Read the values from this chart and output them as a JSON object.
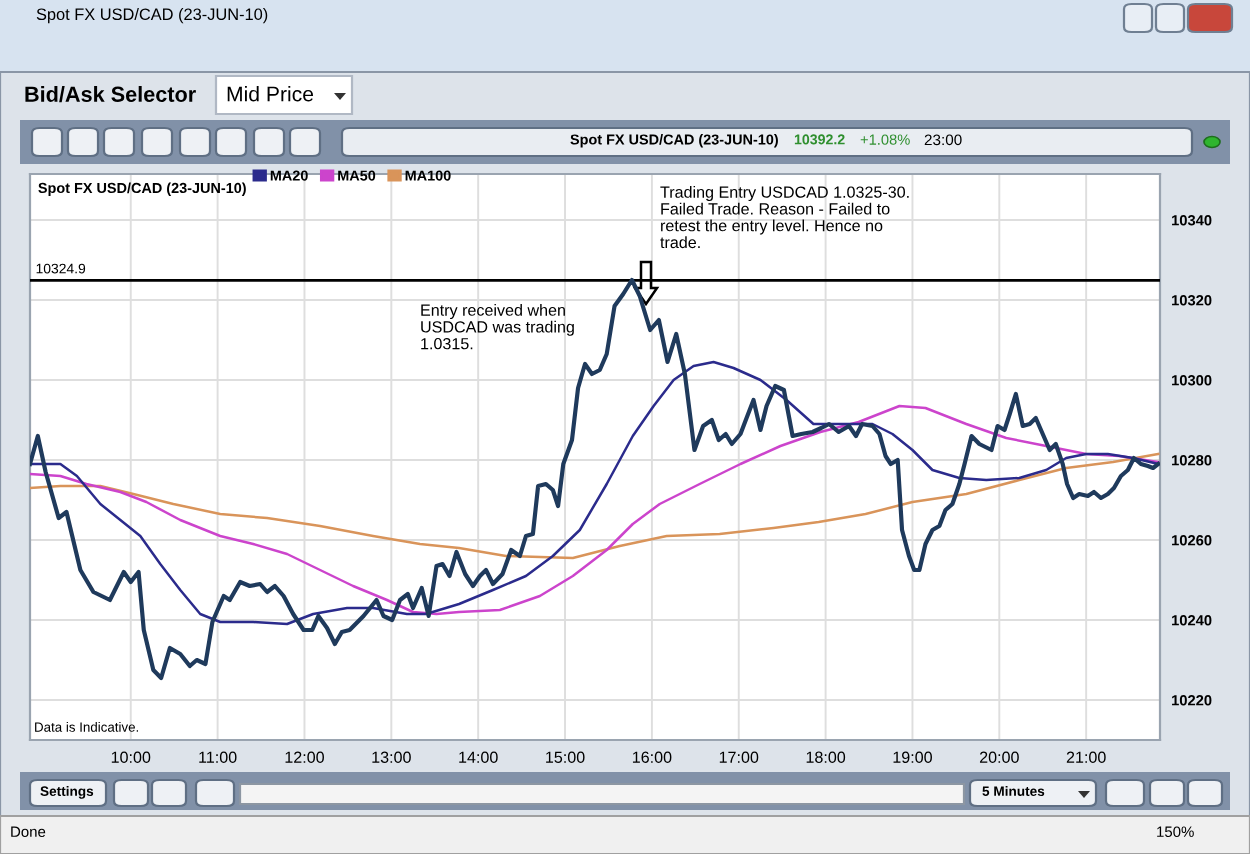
{
  "chart_data": {
    "type": "line",
    "title": "Spot FX USD/CAD (23-JUN-10)",
    "xlim": [
      8.84,
      21.85
    ],
    "xticks": [
      {
        "value": 10,
        "label": "10:00"
      },
      {
        "value": 11,
        "label": "11:00"
      },
      {
        "value": 12,
        "label": "12:00"
      },
      {
        "value": 13,
        "label": "13:00"
      },
      {
        "value": 14,
        "label": "14:00"
      },
      {
        "value": 15,
        "label": "15:00"
      },
      {
        "value": 16,
        "label": "16:00"
      },
      {
        "value": 17,
        "label": "17:00"
      },
      {
        "value": 18,
        "label": "18:00"
      },
      {
        "value": 19,
        "label": "19:00"
      },
      {
        "value": 20,
        "label": "20:00"
      },
      {
        "value": 21,
        "label": "21:00"
      }
    ],
    "ylim": [
      10210,
      10351.5
    ],
    "yticks": [
      10220,
      10240,
      10260,
      10280,
      10300,
      10320,
      10340
    ],
    "grid": true,
    "legend": "top left",
    "ref_lines": [
      {
        "axis": "y",
        "value": 10324.9,
        "label": "10324.9",
        "color": "#000000"
      }
    ],
    "series": [
      {
        "color": "#1f3a5c",
        "x": [
          8.84,
          8.93,
          9.02,
          9.17,
          9.26,
          9.42,
          9.57,
          9.76,
          9.92,
          10.0,
          10.09,
          10.15,
          10.26,
          10.35,
          10.45,
          10.57,
          10.68,
          10.76,
          10.86,
          10.94,
          11.07,
          11.14,
          11.26,
          11.37,
          11.49,
          11.57,
          11.66,
          11.76,
          11.87,
          11.99,
          12.09,
          12.16,
          12.26,
          12.35,
          12.43,
          12.52,
          12.68,
          12.83,
          12.91,
          13.01,
          13.1,
          13.19,
          13.25,
          13.35,
          13.43,
          13.52,
          13.59,
          13.67,
          13.75,
          13.85,
          13.94,
          14.02,
          14.09,
          14.17,
          14.28,
          14.38,
          14.48,
          14.55,
          14.63,
          14.69,
          14.78,
          14.86,
          14.92,
          14.98,
          15.08,
          15.15,
          15.23,
          15.31,
          15.4,
          15.48,
          15.57,
          15.67,
          15.77,
          15.86,
          15.98,
          16.08,
          16.18,
          16.28,
          16.38,
          16.49,
          16.59,
          16.69,
          16.77,
          16.85,
          16.92,
          17.02,
          17.09,
          17.17,
          17.25,
          17.32,
          17.42,
          17.52,
          17.62,
          17.72,
          17.85,
          17.95,
          18.04,
          18.15,
          18.27,
          18.35,
          18.42,
          18.54,
          18.62,
          18.69,
          18.75,
          18.83,
          18.88,
          18.96,
          19.02,
          19.08,
          19.15,
          19.23,
          19.31,
          19.38,
          19.46,
          19.54,
          19.6,
          19.68,
          19.77,
          19.91,
          19.98,
          20.06,
          20.12,
          20.19,
          20.27,
          20.35,
          20.42,
          20.5,
          20.58,
          20.65,
          20.73,
          20.78,
          20.85,
          20.92,
          21.02,
          21.09,
          21.17,
          21.25,
          21.32,
          21.4,
          21.48,
          21.55,
          21.63,
          21.71,
          21.77,
          21.83
        ],
        "values": [
          10279,
          10286,
          10277,
          10265.5,
          10267,
          10252.5,
          10247,
          10245,
          10252,
          10249.5,
          10252,
          10237.5,
          10227.5,
          10225.5,
          10233,
          10231.5,
          10228.5,
          10230,
          10229,
          10239.5,
          10246,
          10245,
          10249.5,
          10248.5,
          10249,
          10247,
          10248.5,
          10246,
          10241.5,
          10237.5,
          10237.5,
          10241,
          10238,
          10234,
          10237,
          10237.5,
          10241,
          10245,
          10241,
          10240,
          10245,
          10246.5,
          10243,
          10248,
          10241,
          10253.5,
          10254,
          10251,
          10257,
          10251.5,
          10248.5,
          10251,
          10252.5,
          10249,
          10251.5,
          10257.5,
          10256,
          10261,
          10261.5,
          10273.5,
          10274,
          10272.5,
          10268.5,
          10279,
          10285,
          10298,
          10304,
          10301.5,
          10302.5,
          10306.5,
          10318.5,
          10321.5,
          10325,
          10321,
          10312.5,
          10315,
          10304.5,
          10311.5,
          10301.5,
          10282.5,
          10288.5,
          10290,
          10285,
          10286.5,
          10284,
          10286.5,
          10290.5,
          10295,
          10287.5,
          10293.5,
          10298.5,
          10297.5,
          10286,
          10286.5,
          10287,
          10288,
          10289,
          10287,
          10288.5,
          10286,
          10289,
          10288.5,
          10286.5,
          10281,
          10279,
          10280,
          10262.5,
          10256,
          10252.5,
          10252.5,
          10259,
          10262.5,
          10263.5,
          10267.5,
          10269,
          10274,
          10279,
          10286,
          10284,
          10282.5,
          10288.5,
          10287.5,
          10291.5,
          10296.5,
          10288.5,
          10289,
          10290.5,
          10286.5,
          10282.5,
          10284,
          10279,
          10274,
          10270.5,
          10271.5,
          10271,
          10272,
          10270.5,
          10271.5,
          10273,
          10276,
          10277.5,
          10280.5,
          10279,
          10278.5,
          10278,
          10279
        ]
      },
      {
        "name": "MA20",
        "color": "#2b2b8c",
        "x": [
          8.84,
          8.96,
          9.19,
          9.38,
          9.65,
          9.88,
          10.11,
          10.34,
          10.57,
          10.8,
          11.03,
          11.41,
          11.8,
          12.1,
          12.49,
          12.79,
          13.18,
          13.4,
          13.78,
          14.17,
          14.55,
          14.86,
          15.17,
          15.48,
          15.78,
          16.02,
          16.25,
          16.48,
          16.71,
          16.94,
          17.25,
          17.55,
          17.86,
          18.23,
          18.54,
          18.77,
          19.0,
          19.23,
          19.54,
          19.85,
          20.23,
          20.54,
          20.77,
          21.0,
          21.25,
          21.54,
          21.83
        ],
        "values": [
          10279,
          10279,
          10279,
          10276,
          10269,
          10265,
          10261,
          10254,
          10247.5,
          10241.5,
          10239.5,
          10239.5,
          10239,
          10241.5,
          10243,
          10243,
          10241.5,
          10241.5,
          10244,
          10247.5,
          10251,
          10256,
          10262.5,
          10274,
          10286,
          10293.5,
          10300,
          10303.5,
          10304.5,
          10303,
          10300,
          10295,
          10289,
          10289,
          10289,
          10286.5,
          10282.5,
          10277.5,
          10275.5,
          10275,
          10275.5,
          10277.5,
          10280.5,
          10281.5,
          10281.5,
          10280.5,
          10279
        ]
      },
      {
        "name": "MA50",
        "color": "#cc44cc",
        "x": [
          8.84,
          9.19,
          9.49,
          9.88,
          10.18,
          10.57,
          11.03,
          11.41,
          11.8,
          12.18,
          12.56,
          12.95,
          13.25,
          13.52,
          13.78,
          14.25,
          14.71,
          15.09,
          15.48,
          15.78,
          16.09,
          16.55,
          17.02,
          17.48,
          17.94,
          18.38,
          18.85,
          19.15,
          19.62,
          20.08,
          20.54,
          21.0,
          21.38,
          21.83
        ],
        "values": [
          10276.5,
          10276,
          10274,
          10272,
          10269.5,
          10265,
          10261,
          10259,
          10256.5,
          10252.5,
          10248.5,
          10245,
          10242,
          10241.5,
          10242,
          10242.5,
          10246,
          10251,
          10257.5,
          10264,
          10269,
          10274,
          10279,
          10283.5,
          10287,
          10289.5,
          10293.5,
          10293,
          10289,
          10285.5,
          10283.5,
          10281.5,
          10281,
          10279.5
        ]
      },
      {
        "name": "MA100",
        "color": "#d9945a",
        "x": [
          8.84,
          9.19,
          9.65,
          10.03,
          10.49,
          11.03,
          11.57,
          12.18,
          12.79,
          13.33,
          13.78,
          14.32,
          15.09,
          15.63,
          16.17,
          16.78,
          17.4,
          17.92,
          18.46,
          19.0,
          19.62,
          20.23,
          20.77,
          21.31,
          21.83
        ],
        "values": [
          10273,
          10273.5,
          10273.5,
          10271.5,
          10269,
          10266.5,
          10265.5,
          10263.5,
          10261,
          10259,
          10258,
          10256,
          10255.5,
          10258.5,
          10261,
          10261.5,
          10263,
          10264.5,
          10266.5,
          10269.5,
          10271.5,
          10275,
          10278,
          10279.5,
          10281.5
        ]
      }
    ],
    "annotations": [
      "Entry received when\nUSDCAD was trading\n1.0315.",
      "Trading Entry USDCAD 1.0325-30.\nFailed Trade. Reason - Failed to\nretest the entry level. Hence no\ntrade.",
      "Data is Indicative.",
      "Spot FX USD/CAD (23-JUN-10)",
      "Bid/Ask Selector",
      "Mid Price",
      "Spot FX USD/CAD (23-JUN-10)",
      "10392.2",
      "+1.08%",
      "23:00",
      "Settings",
      "5 Minutes",
      "Done",
      "150%"
    ]
  }
}
